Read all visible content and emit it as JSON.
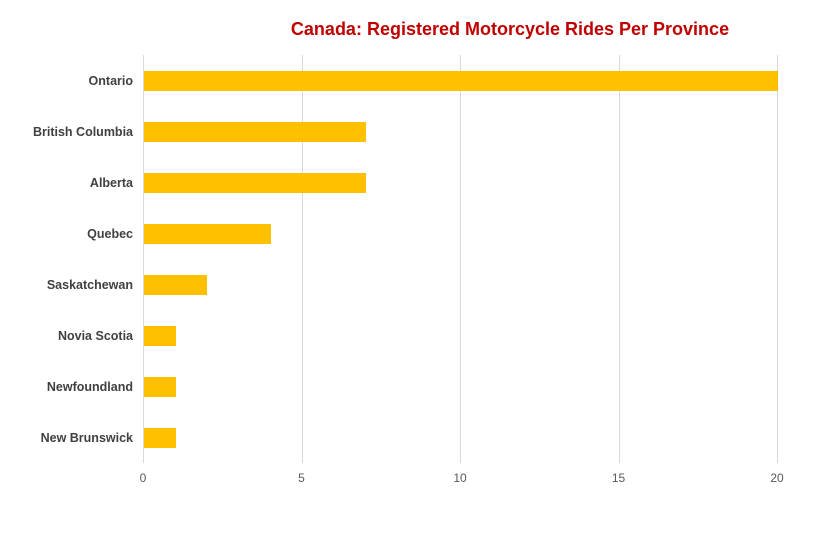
{
  "chart_data": {
    "type": "bar",
    "orientation": "horizontal",
    "title": "Canada: Registered Motorcycle Rides Per Province",
    "categories": [
      "Ontario",
      "British Columbia",
      "Alberta",
      "Quebec",
      "Saskatchewan",
      "Novia Scotia",
      "Newfoundland",
      "New Brunswick"
    ],
    "values": [
      20,
      7,
      7,
      4,
      2,
      1,
      1,
      1
    ],
    "xlabel": "",
    "ylabel": "",
    "xlim": [
      0,
      20
    ],
    "xticks": [
      0,
      5,
      10,
      15,
      20
    ],
    "grid": true,
    "legend": false,
    "colors": {
      "bar": "#FFC000",
      "title": "#C00000",
      "category_label": "#404040",
      "tick_label": "#595959",
      "gridline": "#D9D9D9",
      "background": "#FFFFFF"
    }
  }
}
